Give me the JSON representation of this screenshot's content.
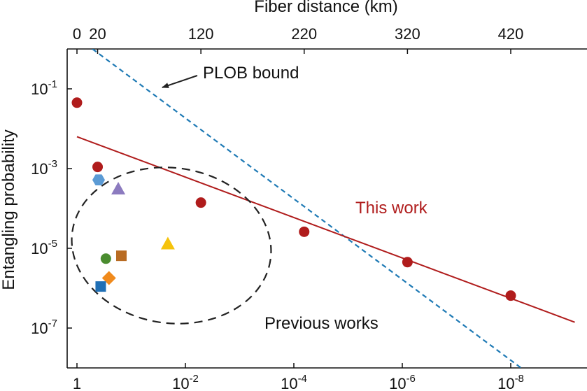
{
  "chart_data": {
    "type": "scatter",
    "top_axis": {
      "label": "Fiber distance (km)",
      "ticks": [
        0,
        20,
        120,
        220,
        320,
        420
      ]
    },
    "bottom_axis": {
      "scale": "log-reversed",
      "range": [
        1,
        1e-09
      ],
      "ticks": [
        {
          "base": "1",
          "exp": ""
        },
        {
          "base": "10",
          "exp": "-2"
        },
        {
          "base": "10",
          "exp": "-4"
        },
        {
          "base": "10",
          "exp": "-6"
        },
        {
          "base": "10",
          "exp": "-8"
        }
      ]
    },
    "y_axis": {
      "label": "Entangling probability",
      "scale": "log",
      "range": [
        1e-08,
        1
      ],
      "ticks": [
        {
          "base": "10",
          "exp": "-1"
        },
        {
          "base": "10",
          "exp": "-3"
        },
        {
          "base": "10",
          "exp": "-5"
        },
        {
          "base": "10",
          "exp": "-7"
        }
      ]
    },
    "series": [
      {
        "name": "This work",
        "color": "#b01c1c",
        "marker": "circle",
        "points": [
          {
            "x": 0,
            "y": 0.045
          },
          {
            "x": 20,
            "y": 0.0011
          },
          {
            "x": 120,
            "y": 0.00014
          },
          {
            "x": 220,
            "y": 2.6e-05
          },
          {
            "x": 320,
            "y": 4.5e-06
          },
          {
            "x": 420,
            "y": 6.5e-07
          }
        ],
        "fit": {
          "x_start": 0,
          "y_start": 0.0063,
          "x_end": 482,
          "y_end": 1.4e-07
        }
      },
      {
        "name": "PLOB bound",
        "color": "#1f7ab5",
        "style": "dashed",
        "x_start": 15,
        "y_start": 1,
        "x_end": 430,
        "y_end": 1e-08
      }
    ],
    "previous_works": {
      "label": "Previous works",
      "points": [
        {
          "x": 21,
          "y": 0.00052,
          "marker": "hexagon",
          "color": "#5b9bd5"
        },
        {
          "x": 40,
          "y": 0.00031,
          "marker": "triangle",
          "color": "#8c7bbf"
        },
        {
          "x": 28,
          "y": 5.5e-06,
          "marker": "circle",
          "color": "#4a8c2f"
        },
        {
          "x": 43,
          "y": 6.5e-06,
          "marker": "square",
          "color": "#b86b22"
        },
        {
          "x": 31,
          "y": 1.8e-06,
          "marker": "diamond",
          "color": "#f08a1c"
        },
        {
          "x": 23,
          "y": 1.1e-06,
          "marker": "square",
          "color": "#1f6fb5"
        },
        {
          "x": 88,
          "y": 1.3e-05,
          "marker": "triangle",
          "color": "#f5c30c"
        }
      ]
    },
    "annotations": {
      "plob_label": "PLOB bound",
      "this_work_label": "This work",
      "previous_label": "Previous works"
    }
  }
}
